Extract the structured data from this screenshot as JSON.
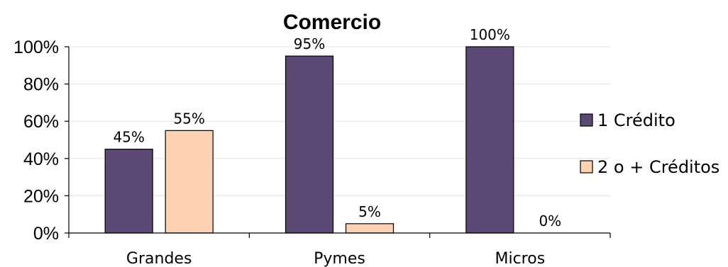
{
  "chart_data": {
    "type": "bar",
    "title": "Comercio",
    "categories": [
      "Grandes",
      "Pymes",
      "Micros"
    ],
    "series": [
      {
        "name": "1 Crédito",
        "color": "#5c4874",
        "values": [
          45,
          95,
          100
        ],
        "labels": [
          "45%",
          "95%",
          "100%"
        ]
      },
      {
        "name": "2 o + Créditos",
        "color": "#fcd1b4",
        "values": [
          55,
          5,
          0
        ],
        "labels": [
          "55%",
          "5%",
          "0%"
        ]
      }
    ],
    "ylim": [
      0,
      100
    ],
    "yticks": [
      "0%",
      "20%",
      "40%",
      "60%",
      "80%",
      "100%"
    ],
    "ytick_values": [
      0,
      20,
      40,
      60,
      80,
      100
    ],
    "xlabel": "",
    "ylabel": "",
    "grid": true,
    "legend_position": "right"
  }
}
